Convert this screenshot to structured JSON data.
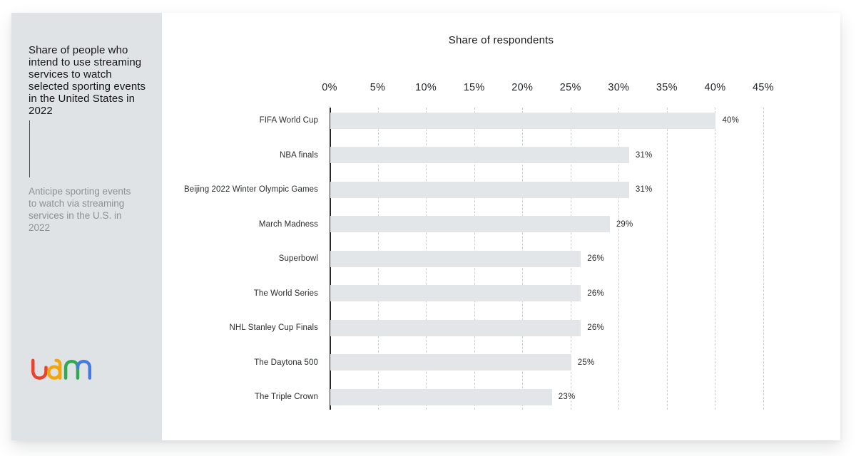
{
  "sidebar": {
    "title": "Share of people who\nintend to use streaming\nservices to watch\nselected sporting events\nin the United States in\n2022",
    "subtitle": "Anticipe sporting events\nto watch via streaming\nservices in the U.S. in\n2022",
    "background": "#dfe3e6",
    "logo": {
      "name": "udm-logo",
      "colors": {
        "u": "#E8432F",
        "d": "#F2A50C",
        "m_left": "#33A852",
        "m_right": "#4779E3"
      }
    }
  },
  "chart_data": {
    "type": "bar",
    "orientation": "horizontal",
    "title": "Share of respondents",
    "categories": [
      "FIFA World Cup",
      "NBA finals",
      "Beijing 2022 Winter Olympic Games",
      "March Madness",
      "Superbowl",
      "The World Series",
      "NHL Stanley Cup Finals",
      "The Daytona 500",
      "The  Triple Crown"
    ],
    "values": [
      40,
      31,
      31,
      29,
      26,
      26,
      26,
      25,
      23
    ],
    "value_labels": [
      "40%",
      "31%",
      "31%",
      "29%",
      "26%",
      "26%",
      "26%",
      "25%",
      "23%"
    ],
    "xlabel": "",
    "ylabel": "",
    "xlim": [
      0,
      45
    ],
    "x_ticks": [
      0,
      5,
      10,
      15,
      20,
      25,
      30,
      35,
      40,
      45
    ],
    "x_tick_labels": [
      "0%",
      "5%",
      "10%",
      "15%",
      "20%",
      "25%",
      "30%",
      "35%",
      "40%",
      "45%"
    ],
    "grid": "vertical-dashed",
    "legend": "none",
    "bar_color": "#e2e6e8",
    "gridline_color": "#c9ced1",
    "axis_color": "#26292b"
  }
}
